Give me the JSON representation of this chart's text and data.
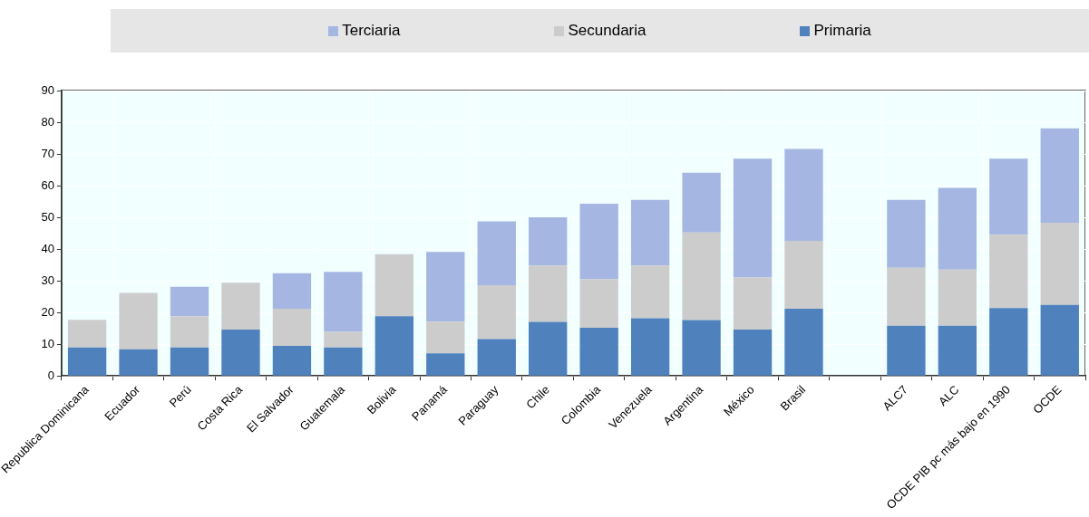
{
  "chart_data": {
    "type": "bar",
    "stacked": true,
    "categories": [
      "Republica Dominicana",
      "Ecuador",
      "Perú",
      "Costa Rica",
      "El Salvador",
      "Guatemala",
      "Bolivia",
      "Panamá",
      "Paraguay",
      "Chile",
      "Colombia",
      "Venezuela",
      "Argentina",
      "México",
      "Brasil",
      null,
      "ALC7",
      "ALC",
      "OCDE PIB pc más bajo en 1990",
      "OCDE"
    ],
    "series": [
      {
        "name": "Primaria",
        "color": "#4f81bd",
        "values": [
          9,
          8.4,
          9,
          14.6,
          9.5,
          9,
          18.8,
          7.1,
          11.6,
          17,
          15.2,
          18.2,
          17.6,
          14.6,
          21.2,
          null,
          15.8,
          15.8,
          21.4,
          22.4
        ]
      },
      {
        "name": "Secundaria",
        "color": "#cccccc",
        "values": [
          8.7,
          17.8,
          9.8,
          14.8,
          11.7,
          4.9,
          19.6,
          10,
          17,
          17.8,
          15.3,
          16.6,
          27.6,
          16.4,
          21.4,
          null,
          18.3,
          17.7,
          23.1,
          25.9
        ]
      },
      {
        "name": "Terciaria",
        "color": "#a6b6e2",
        "values": [
          0,
          0,
          9.3,
          0,
          11.2,
          18.9,
          0,
          22,
          20.1,
          15.2,
          23.8,
          20.7,
          18.9,
          37.5,
          29,
          null,
          21.4,
          25.8,
          24,
          29.8
        ]
      }
    ],
    "ylim": [
      0,
      90
    ],
    "yticks": [
      0,
      10,
      20,
      30,
      40,
      50,
      60,
      70,
      80,
      90
    ],
    "grid": true,
    "legend": "top"
  }
}
